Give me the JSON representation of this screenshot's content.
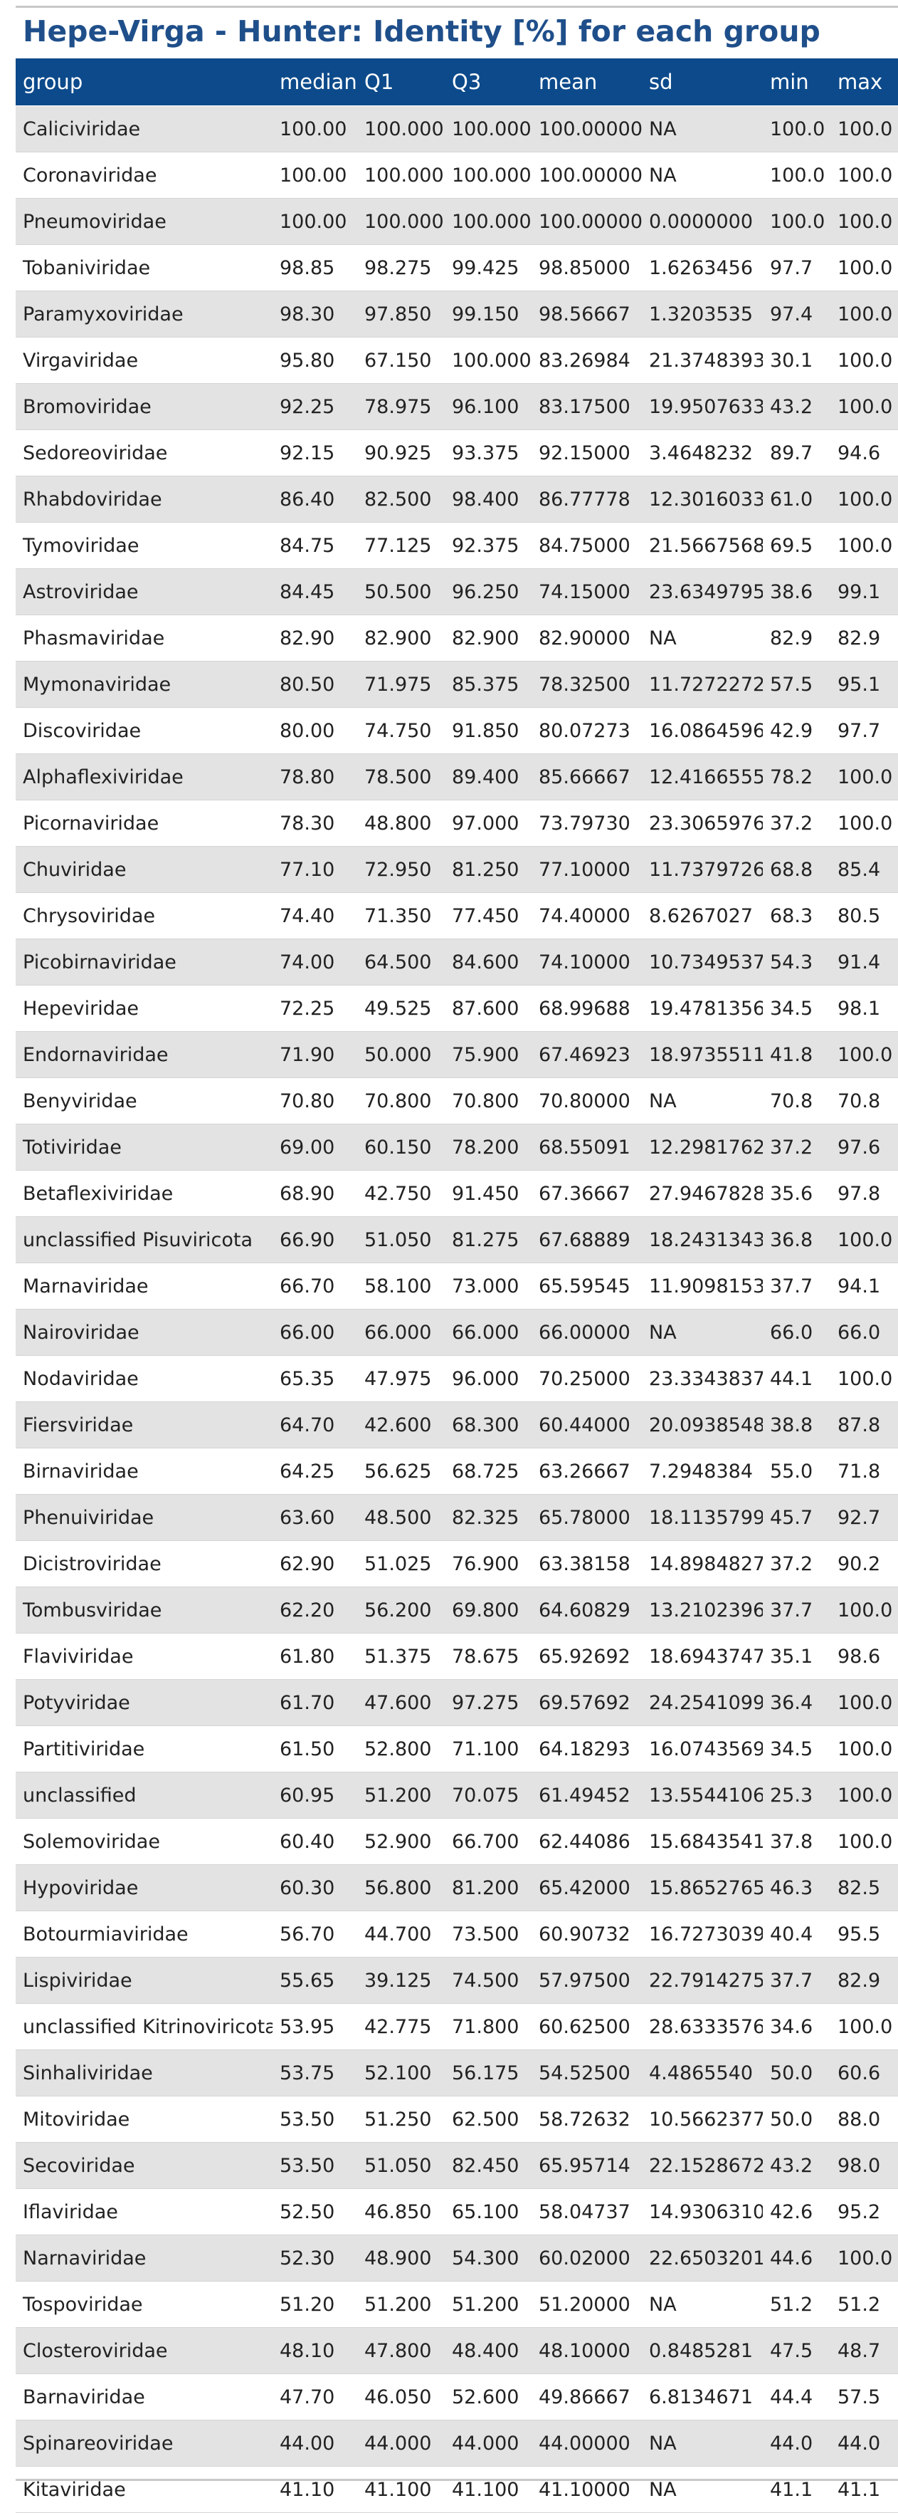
{
  "title": "Hepe-Virga - Hunter: Identity [%] for each group",
  "columns": [
    "group",
    "median",
    "Q1",
    "Q3",
    "mean",
    "sd",
    "min",
    "max"
  ],
  "rows": [
    [
      "Caliciviridae",
      "100.00",
      "100.000",
      "100.000",
      "100.00000",
      "NA",
      "100.0",
      "100.0"
    ],
    [
      "Coronaviridae",
      "100.00",
      "100.000",
      "100.000",
      "100.00000",
      "NA",
      "100.0",
      "100.0"
    ],
    [
      "Pneumoviridae",
      "100.00",
      "100.000",
      "100.000",
      "100.00000",
      "0.0000000",
      "100.0",
      "100.0"
    ],
    [
      "Tobaniviridae",
      "98.85",
      "98.275",
      "99.425",
      "98.85000",
      "1.6263456",
      "97.7",
      "100.0"
    ],
    [
      "Paramyxoviridae",
      "98.30",
      "97.850",
      "99.150",
      "98.56667",
      "1.3203535",
      "97.4",
      "100.0"
    ],
    [
      "Virgaviridae",
      "95.80",
      "67.150",
      "100.000",
      "83.26984",
      "21.3748393",
      "30.1",
      "100.0"
    ],
    [
      "Bromoviridae",
      "92.25",
      "78.975",
      "96.100",
      "83.17500",
      "19.9507633",
      "43.2",
      "100.0"
    ],
    [
      "Sedoreoviridae",
      "92.15",
      "90.925",
      "93.375",
      "92.15000",
      "3.4648232",
      "89.7",
      "94.6"
    ],
    [
      "Rhabdoviridae",
      "86.40",
      "82.500",
      "98.400",
      "86.77778",
      "12.3016033",
      "61.0",
      "100.0"
    ],
    [
      "Tymoviridae",
      "84.75",
      "77.125",
      "92.375",
      "84.75000",
      "21.5667568",
      "69.5",
      "100.0"
    ],
    [
      "Astroviridae",
      "84.45",
      "50.500",
      "96.250",
      "74.15000",
      "23.6349795",
      "38.6",
      "99.1"
    ],
    [
      "Phasmaviridae",
      "82.90",
      "82.900",
      "82.900",
      "82.90000",
      "NA",
      "82.9",
      "82.9"
    ],
    [
      "Mymonaviridae",
      "80.50",
      "71.975",
      "85.375",
      "78.32500",
      "11.7272272",
      "57.5",
      "95.1"
    ],
    [
      "Discoviridae",
      "80.00",
      "74.750",
      "91.850",
      "80.07273",
      "16.0864596",
      "42.9",
      "97.7"
    ],
    [
      "Alphaflexiviridae",
      "78.80",
      "78.500",
      "89.400",
      "85.66667",
      "12.4166555",
      "78.2",
      "100.0"
    ],
    [
      "Picornaviridae",
      "78.30",
      "48.800",
      "97.000",
      "73.79730",
      "23.3065976",
      "37.2",
      "100.0"
    ],
    [
      "Chuviridae",
      "77.10",
      "72.950",
      "81.250",
      "77.10000",
      "11.7379726",
      "68.8",
      "85.4"
    ],
    [
      "Chrysoviridae",
      "74.40",
      "71.350",
      "77.450",
      "74.40000",
      "8.6267027",
      "68.3",
      "80.5"
    ],
    [
      "Picobirnaviridae",
      "74.00",
      "64.500",
      "84.600",
      "74.10000",
      "10.7349537",
      "54.3",
      "91.4"
    ],
    [
      "Hepeviridae",
      "72.25",
      "49.525",
      "87.600",
      "68.99688",
      "19.4781356",
      "34.5",
      "98.1"
    ],
    [
      "Endornaviridae",
      "71.90",
      "50.000",
      "75.900",
      "67.46923",
      "18.9735511",
      "41.8",
      "100.0"
    ],
    [
      "Benyviridae",
      "70.80",
      "70.800",
      "70.800",
      "70.80000",
      "NA",
      "70.8",
      "70.8"
    ],
    [
      "Totiviridae",
      "69.00",
      "60.150",
      "78.200",
      "68.55091",
      "12.2981762",
      "37.2",
      "97.6"
    ],
    [
      "Betaflexiviridae",
      "68.90",
      "42.750",
      "91.450",
      "67.36667",
      "27.9467828",
      "35.6",
      "97.8"
    ],
    [
      "unclassified Pisuviricota",
      "66.90",
      "51.050",
      "81.275",
      "67.68889",
      "18.2431343",
      "36.8",
      "100.0"
    ],
    [
      "Marnaviridae",
      "66.70",
      "58.100",
      "73.000",
      "65.59545",
      "11.9098153",
      "37.7",
      "94.1"
    ],
    [
      "Nairoviridae",
      "66.00",
      "66.000",
      "66.000",
      "66.00000",
      "NA",
      "66.0",
      "66.0"
    ],
    [
      "Nodaviridae",
      "65.35",
      "47.975",
      "96.000",
      "70.25000",
      "23.3343837",
      "44.1",
      "100.0"
    ],
    [
      "Fiersviridae",
      "64.70",
      "42.600",
      "68.300",
      "60.44000",
      "20.0938548",
      "38.8",
      "87.8"
    ],
    [
      "Birnaviridae",
      "64.25",
      "56.625",
      "68.725",
      "63.26667",
      "7.2948384",
      "55.0",
      "71.8"
    ],
    [
      "Phenuiviridae",
      "63.60",
      "48.500",
      "82.325",
      "65.78000",
      "18.1135799",
      "45.7",
      "92.7"
    ],
    [
      "Dicistroviridae",
      "62.90",
      "51.025",
      "76.900",
      "63.38158",
      "14.8984827",
      "37.2",
      "90.2"
    ],
    [
      "Tombusviridae",
      "62.20",
      "56.200",
      "69.800",
      "64.60829",
      "13.2102396",
      "37.7",
      "100.0"
    ],
    [
      "Flaviviridae",
      "61.80",
      "51.375",
      "78.675",
      "65.92692",
      "18.6943747",
      "35.1",
      "98.6"
    ],
    [
      "Potyviridae",
      "61.70",
      "47.600",
      "97.275",
      "69.57692",
      "24.2541099",
      "36.4",
      "100.0"
    ],
    [
      "Partitiviridae",
      "61.50",
      "52.800",
      "71.100",
      "64.18293",
      "16.0743569",
      "34.5",
      "100.0"
    ],
    [
      "unclassified",
      "60.95",
      "51.200",
      "70.075",
      "61.49452",
      "13.5544106",
      "25.3",
      "100.0"
    ],
    [
      "Solemoviridae",
      "60.40",
      "52.900",
      "66.700",
      "62.44086",
      "15.6843541",
      "37.8",
      "100.0"
    ],
    [
      "Hypoviridae",
      "60.30",
      "56.800",
      "81.200",
      "65.42000",
      "15.8652765",
      "46.3",
      "82.5"
    ],
    [
      "Botourmiaviridae",
      "56.70",
      "44.700",
      "73.500",
      "60.90732",
      "16.7273039",
      "40.4",
      "95.5"
    ],
    [
      "Lispiviridae",
      "55.65",
      "39.125",
      "74.500",
      "57.97500",
      "22.7914275",
      "37.7",
      "82.9"
    ],
    [
      "unclassified Kitrinoviricota",
      "53.95",
      "42.775",
      "71.800",
      "60.62500",
      "28.6333576",
      "34.6",
      "100.0"
    ],
    [
      "Sinhaliviridae",
      "53.75",
      "52.100",
      "56.175",
      "54.52500",
      "4.4865540",
      "50.0",
      "60.6"
    ],
    [
      "Mitoviridae",
      "53.50",
      "51.250",
      "62.500",
      "58.72632",
      "10.5662377",
      "50.0",
      "88.0"
    ],
    [
      "Secoviridae",
      "53.50",
      "51.050",
      "82.450",
      "65.95714",
      "22.1528672",
      "43.2",
      "98.0"
    ],
    [
      "Iflaviridae",
      "52.50",
      "46.850",
      "65.100",
      "58.04737",
      "14.9306310",
      "42.6",
      "95.2"
    ],
    [
      "Narnaviridae",
      "52.30",
      "48.900",
      "54.300",
      "60.02000",
      "22.6503201",
      "44.6",
      "100.0"
    ],
    [
      "Tospoviridae",
      "51.20",
      "51.200",
      "51.200",
      "51.20000",
      "NA",
      "51.2",
      "51.2"
    ],
    [
      "Closteroviridae",
      "48.10",
      "47.800",
      "48.400",
      "48.10000",
      "0.8485281",
      "47.5",
      "48.7"
    ],
    [
      "Barnaviridae",
      "47.70",
      "46.050",
      "52.600",
      "49.86667",
      "6.8134671",
      "44.4",
      "57.5"
    ],
    [
      "Spinareoviridae",
      "44.00",
      "44.000",
      "44.000",
      "44.00000",
      "NA",
      "44.0",
      "44.0"
    ],
    [
      "Kitaviridae",
      "41.10",
      "41.100",
      "41.100",
      "41.10000",
      "NA",
      "41.1",
      "41.1"
    ]
  ]
}
